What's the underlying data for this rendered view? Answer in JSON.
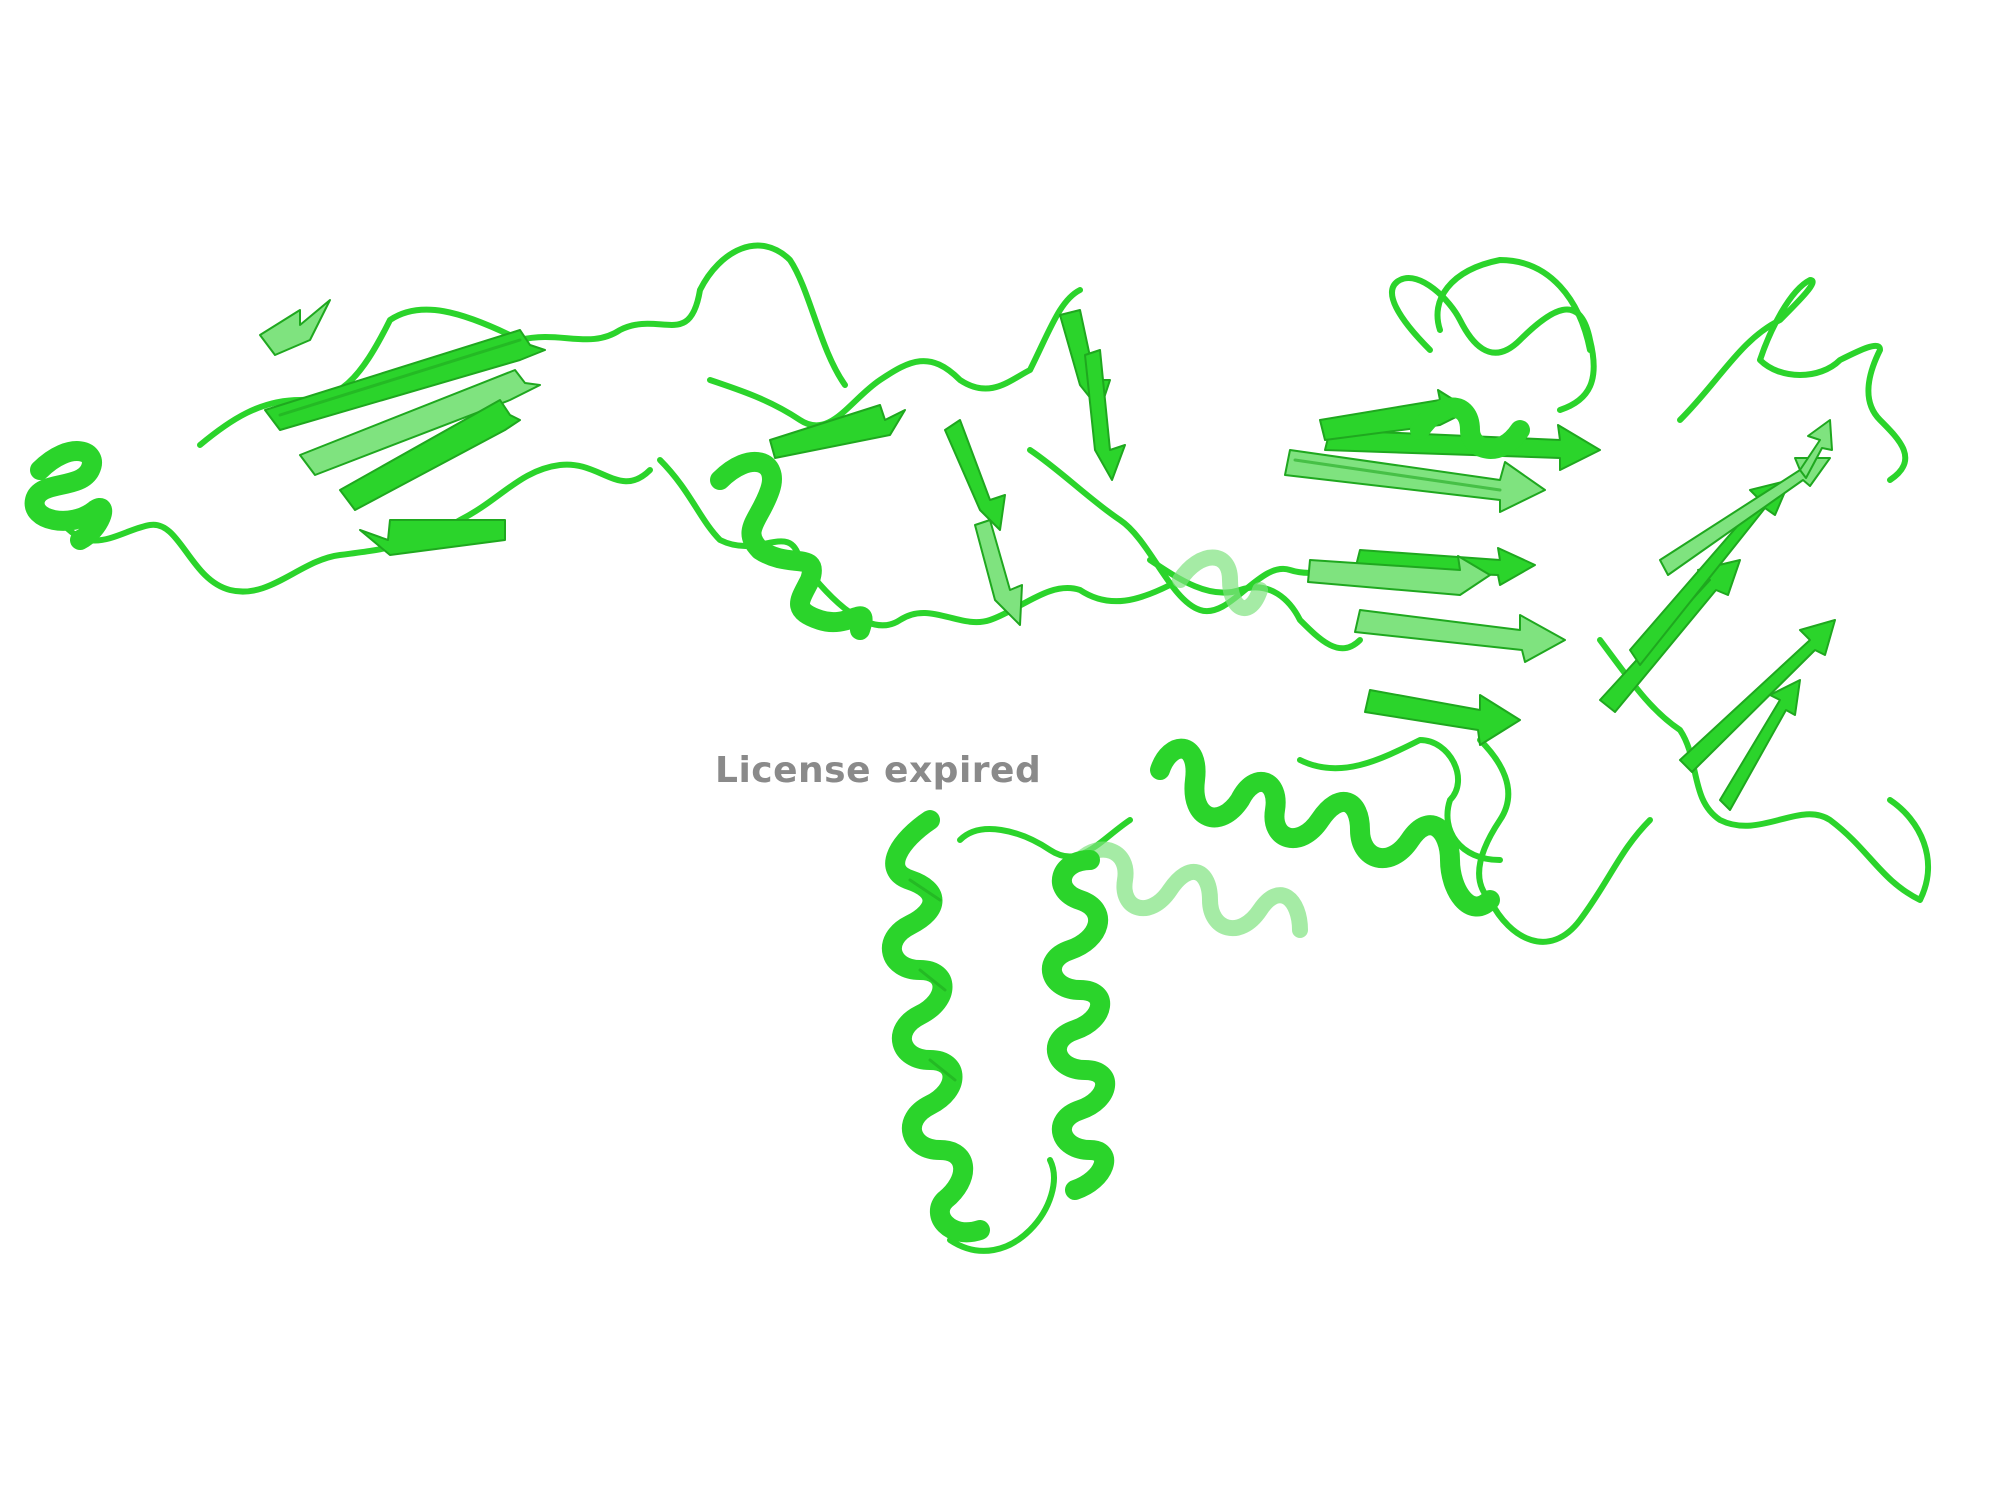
{
  "watermark": {
    "text": "License expired",
    "color": "#8a8a8a"
  },
  "render": {
    "background": "#ffffff",
    "ribbon_color": "#2bd42b",
    "ribbon_dark": "#1fa81f",
    "ribbon_light": "#7fe37f",
    "style": "cartoon"
  }
}
